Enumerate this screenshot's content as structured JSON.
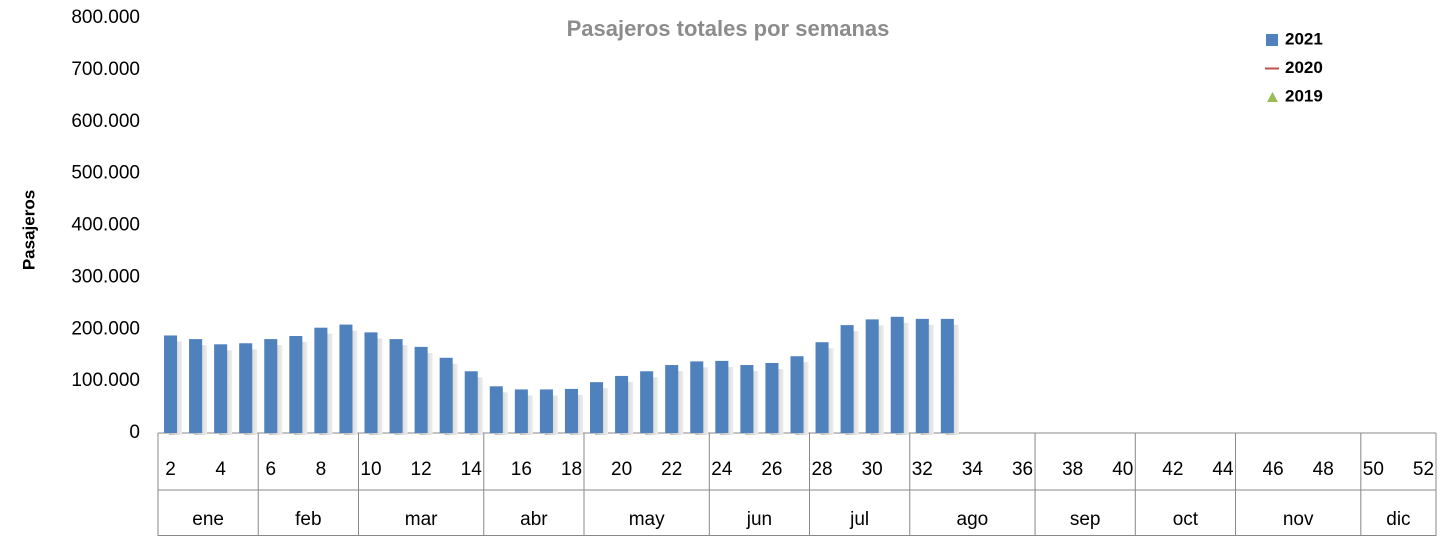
{
  "chart_data": {
    "type": "bar",
    "title": "Pasajeros totales por semanas",
    "y_label": "Pasajeros",
    "categories": [
      "2",
      null,
      "4",
      null,
      "6",
      null,
      "8",
      null,
      "10",
      null,
      "12",
      null,
      "14",
      null,
      "16",
      null,
      "18",
      null,
      "20",
      null,
      "22",
      null,
      "24",
      null,
      "26",
      null,
      "28",
      null,
      "30",
      null,
      "32",
      null,
      "34",
      null,
      "36",
      null,
      "38",
      null,
      "40",
      null,
      "42",
      null,
      "44",
      null,
      "46",
      null,
      "48",
      null,
      "50",
      null,
      "52"
    ],
    "groups": [
      {
        "label": "ene",
        "span": 4
      },
      {
        "label": "feb",
        "span": 4
      },
      {
        "label": "mar",
        "span": 5
      },
      {
        "label": "abr",
        "span": 4
      },
      {
        "label": "may",
        "span": 5
      },
      {
        "label": "jun",
        "span": 4
      },
      {
        "label": "jul",
        "span": 4
      },
      {
        "label": "ago",
        "span": 5
      },
      {
        "label": "sep",
        "span": 4
      },
      {
        "label": "oct",
        "span": 4
      },
      {
        "label": "nov",
        "span": 5
      },
      {
        "label": "dic",
        "span": 3
      }
    ],
    "series": [
      {
        "name": "2021",
        "color": "#4f81bd",
        "marker": "bar",
        "values": [
          188000,
          181000,
          171000,
          173000,
          181000,
          187000,
          203000,
          209000,
          194000,
          181000,
          166000,
          145000,
          119000,
          90000,
          84000,
          84000,
          85000,
          98000,
          110000,
          119000,
          131000,
          138000,
          139000,
          131000,
          135000,
          148000,
          175000,
          208000,
          219000,
          224000,
          220000,
          220000,
          null,
          null,
          null,
          null,
          null,
          null,
          null,
          null,
          null,
          null,
          null,
          null,
          null,
          null,
          null,
          null,
          null,
          null,
          null
        ]
      },
      {
        "name": "2020",
        "color": "#c0504d",
        "marker": "line",
        "values": [
          null,
          null,
          null,
          null,
          null,
          null,
          null,
          null,
          null,
          null,
          null,
          null,
          null,
          null,
          null,
          null,
          null,
          null,
          null,
          null,
          null,
          null,
          null,
          null,
          null,
          null,
          null,
          null,
          null,
          null,
          null,
          null,
          null,
          null,
          null,
          null,
          null,
          null,
          null,
          null,
          null,
          null,
          null,
          null,
          null,
          null,
          null,
          null,
          null,
          null,
          null
        ]
      },
      {
        "name": "2019",
        "color": "#9bbb59",
        "marker": "triangle",
        "values": [
          null,
          null,
          null,
          null,
          null,
          null,
          null,
          null,
          null,
          null,
          null,
          null,
          null,
          null,
          null,
          null,
          null,
          null,
          null,
          null,
          null,
          null,
          null,
          null,
          null,
          null,
          null,
          null,
          null,
          null,
          null,
          null,
          null,
          null,
          null,
          null,
          null,
          null,
          null,
          null,
          null,
          null,
          null,
          null,
          null,
          null,
          null,
          null,
          null,
          null,
          null
        ]
      }
    ],
    "ylim": [
      0,
      800000
    ],
    "yticks": [
      0,
      {
        "value": 100000,
        "label": "100.000"
      },
      {
        "value": 200000,
        "label": "200.000"
      },
      {
        "value": 300000,
        "label": "300.000"
      },
      {
        "value": 400000,
        "label": "400.000"
      },
      {
        "value": 500000,
        "label": "500.000"
      },
      {
        "value": 600000,
        "label": "600.000"
      },
      {
        "value": 700000,
        "label": "700.000"
      },
      {
        "value": 800000,
        "label": "800.000"
      }
    ],
    "grid": false,
    "legend": "top-right"
  }
}
